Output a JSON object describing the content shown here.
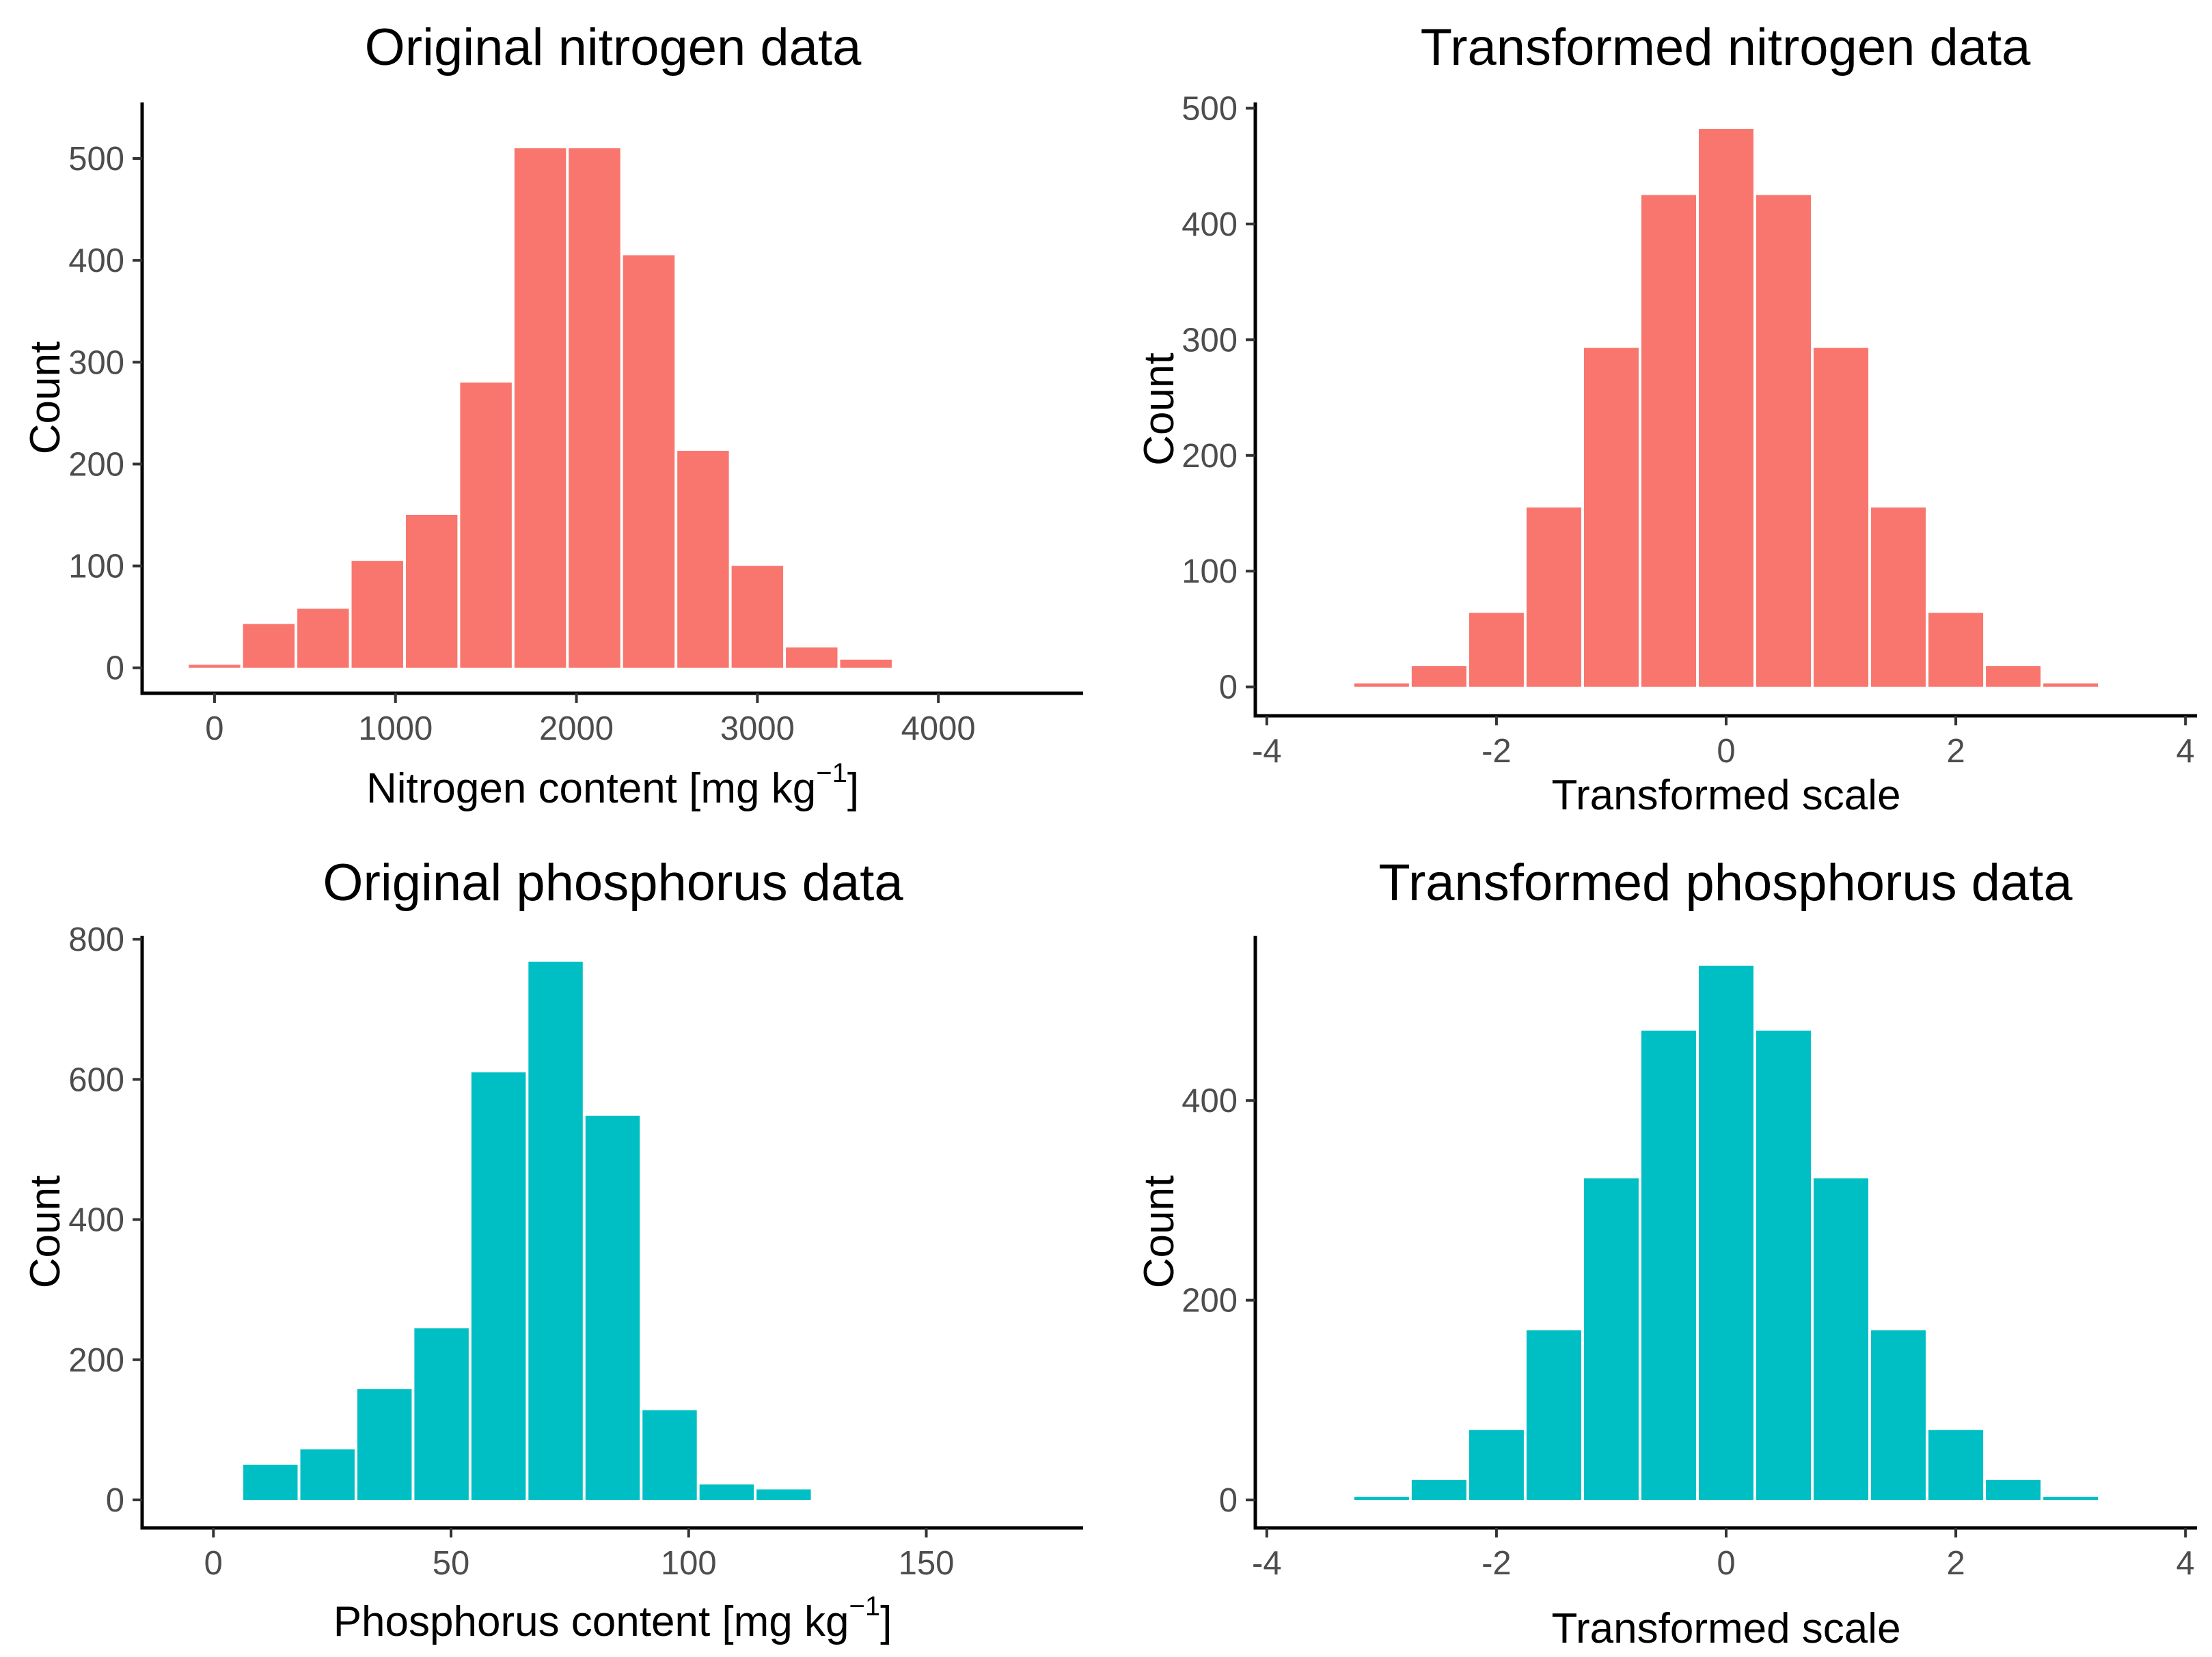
{
  "chart_data": [
    {
      "type": "bar",
      "title": "Original nitrogen data",
      "xlabel": {
        "text": "Nitrogen content [mg kg",
        "sup": "−1",
        "suffix": "]"
      },
      "ylabel": "Count",
      "color": "#F8766D",
      "xlim": [
        -400,
        4800
      ],
      "ylim": [
        -25,
        555
      ],
      "xticks": [
        0,
        1000,
        2000,
        3000,
        4000
      ],
      "yticks": [
        0,
        100,
        200,
        300,
        400,
        500
      ],
      "bins": [
        {
          "x0": -150,
          "x1": 150,
          "count": 3
        },
        {
          "x0": 150,
          "x1": 450,
          "count": 43
        },
        {
          "x0": 450,
          "x1": 750,
          "count": 58
        },
        {
          "x0": 750,
          "x1": 1050,
          "count": 105
        },
        {
          "x0": 1050,
          "x1": 1350,
          "count": 150
        },
        {
          "x0": 1350,
          "x1": 1650,
          "count": 280
        },
        {
          "x0": 1650,
          "x1": 1950,
          "count": 510
        },
        {
          "x0": 1950,
          "x1": 2250,
          "count": 510
        },
        {
          "x0": 2250,
          "x1": 2550,
          "count": 405
        },
        {
          "x0": 2550,
          "x1": 2850,
          "count": 213
        },
        {
          "x0": 2850,
          "x1": 3150,
          "count": 100
        },
        {
          "x0": 3150,
          "x1": 3450,
          "count": 20
        },
        {
          "x0": 3450,
          "x1": 3750,
          "count": 8
        }
      ]
    },
    {
      "type": "bar",
      "title": "Transformed nitrogen data",
      "xlabel": {
        "text": "Transformed scale",
        "sup": "",
        "suffix": ""
      },
      "ylabel": "Count",
      "color": "#F8766D",
      "xlim": [
        -4.1,
        4.1
      ],
      "ylim": [
        -25,
        505
      ],
      "xticks": [
        -4,
        -2,
        0,
        2,
        4
      ],
      "yticks": [
        0,
        100,
        200,
        300,
        400,
        500
      ],
      "bins": [
        {
          "x0": -3.25,
          "x1": -2.75,
          "count": 3
        },
        {
          "x0": -2.75,
          "x1": -2.25,
          "count": 18
        },
        {
          "x0": -2.25,
          "x1": -1.75,
          "count": 64
        },
        {
          "x0": -1.75,
          "x1": -1.25,
          "count": 155
        },
        {
          "x0": -1.25,
          "x1": -0.75,
          "count": 293
        },
        {
          "x0": -0.75,
          "x1": -0.25,
          "count": 425
        },
        {
          "x0": -0.25,
          "x1": 0.25,
          "count": 482
        },
        {
          "x0": 0.25,
          "x1": 0.75,
          "count": 425
        },
        {
          "x0": 0.75,
          "x1": 1.25,
          "count": 293
        },
        {
          "x0": 1.25,
          "x1": 1.75,
          "count": 155
        },
        {
          "x0": 1.75,
          "x1": 2.25,
          "count": 64
        },
        {
          "x0": 2.25,
          "x1": 2.75,
          "count": 18
        },
        {
          "x0": 2.75,
          "x1": 3.25,
          "count": 3
        }
      ]
    },
    {
      "type": "bar",
      "title": "Original phosphorus data",
      "xlabel": {
        "text": "Phosphorus content [mg kg",
        "sup": "−1",
        "suffix": "]"
      },
      "ylabel": "Count",
      "color": "#00BFC4",
      "xlim": [
        -15,
        183
      ],
      "ylim": [
        -40,
        805
      ],
      "xticks": [
        0,
        50,
        100,
        150
      ],
      "yticks": [
        0,
        200,
        400,
        600,
        800
      ],
      "bins": [
        {
          "x0": 6,
          "x1": 18,
          "count": 50
        },
        {
          "x0": 18,
          "x1": 30,
          "count": 72
        },
        {
          "x0": 30,
          "x1": 42,
          "count": 158
        },
        {
          "x0": 42,
          "x1": 54,
          "count": 245
        },
        {
          "x0": 54,
          "x1": 66,
          "count": 610
        },
        {
          "x0": 66,
          "x1": 78,
          "count": 768
        },
        {
          "x0": 78,
          "x1": 90,
          "count": 548
        },
        {
          "x0": 90,
          "x1": 102,
          "count": 128
        },
        {
          "x0": 102,
          "x1": 114,
          "count": 22
        },
        {
          "x0": 114,
          "x1": 126,
          "count": 15
        }
      ]
    },
    {
      "type": "bar",
      "title": "Transformed phosphorus data",
      "xlabel": {
        "text": "Transformed scale",
        "sup": "",
        "suffix": ""
      },
      "ylabel": "Count",
      "color": "#00BFC4",
      "xlim": [
        -4.1,
        4.1
      ],
      "ylim": [
        -28,
        565
      ],
      "xticks": [
        -4,
        -2,
        0,
        2,
        4
      ],
      "yticks": [
        0,
        200,
        400
      ],
      "bins": [
        {
          "x0": -3.25,
          "x1": -2.75,
          "count": 3
        },
        {
          "x0": -2.75,
          "x1": -2.25,
          "count": 20
        },
        {
          "x0": -2.25,
          "x1": -1.75,
          "count": 70
        },
        {
          "x0": -1.75,
          "x1": -1.25,
          "count": 170
        },
        {
          "x0": -1.25,
          "x1": -0.75,
          "count": 322
        },
        {
          "x0": -0.75,
          "x1": -0.25,
          "count": 470
        },
        {
          "x0": -0.25,
          "x1": 0.25,
          "count": 535
        },
        {
          "x0": 0.25,
          "x1": 0.75,
          "count": 470
        },
        {
          "x0": 0.75,
          "x1": 1.25,
          "count": 322
        },
        {
          "x0": 1.25,
          "x1": 1.75,
          "count": 170
        },
        {
          "x0": 1.75,
          "x1": 2.25,
          "count": 70
        },
        {
          "x0": 2.25,
          "x1": 2.75,
          "count": 20
        },
        {
          "x0": 2.75,
          "x1": 3.25,
          "count": 3
        }
      ]
    }
  ]
}
